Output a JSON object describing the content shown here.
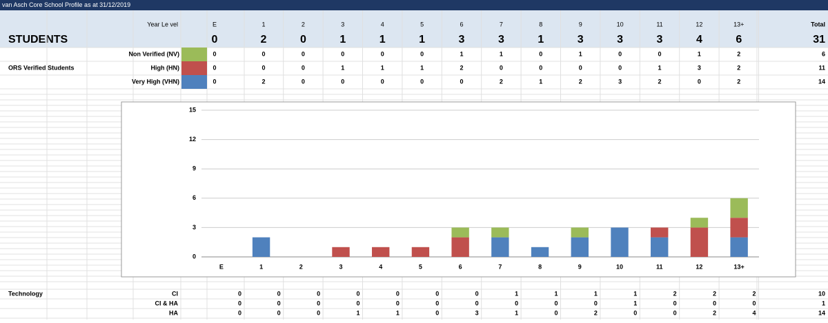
{
  "header": {
    "title": "van Asch Core School Profile as at 31/12/2019"
  },
  "table": {
    "year_label": "Year Le vel",
    "total_label": "Total",
    "students": {
      "label": "STUDENTS",
      "values": [
        0,
        2,
        0,
        1,
        1,
        1,
        3,
        3,
        1,
        3,
        3,
        3,
        4,
        6
      ],
      "total": 31
    },
    "ors_label": "ORS Verified Students",
    "totals": [
      6,
      11,
      14
    ]
  },
  "technology": {
    "label": "Technology",
    "rows": [
      {
        "label": "CI",
        "values": [
          0,
          0,
          0,
          0,
          0,
          0,
          0,
          1,
          1,
          1,
          1,
          2,
          2,
          2
        ],
        "total": 10
      },
      {
        "label": "CI & HA",
        "values": [
          0,
          0,
          0,
          0,
          0,
          0,
          0,
          0,
          0,
          0,
          1,
          0,
          0,
          0
        ],
        "total": 1
      },
      {
        "label": "HA",
        "values": [
          0,
          0,
          0,
          1,
          1,
          0,
          3,
          1,
          0,
          2,
          0,
          0,
          2,
          4
        ],
        "total": 14
      }
    ]
  },
  "chart_data": {
    "type": "stacked_bar",
    "categories": [
      "E",
      "1",
      "2",
      "3",
      "4",
      "5",
      "6",
      "7",
      "8",
      "9",
      "10",
      "11",
      "12",
      "13+"
    ],
    "series": [
      {
        "name": "Non Verified (NV)",
        "color": "#9bbb59",
        "values": [
          0,
          0,
          0,
          0,
          0,
          0,
          1,
          1,
          0,
          1,
          0,
          0,
          1,
          2
        ]
      },
      {
        "name": "High (HN)",
        "color": "#c0504d",
        "values": [
          0,
          0,
          0,
          1,
          1,
          1,
          2,
          0,
          0,
          0,
          0,
          1,
          3,
          2
        ]
      },
      {
        "name": "Very High (VHN)",
        "color": "#4f81bd",
        "values": [
          0,
          2,
          0,
          0,
          0,
          0,
          0,
          2,
          1,
          2,
          3,
          2,
          0,
          2
        ]
      }
    ],
    "ylim": [
      0,
      15
    ],
    "yticks": [
      0,
      3,
      6,
      9,
      12,
      15
    ],
    "grid": true
  }
}
